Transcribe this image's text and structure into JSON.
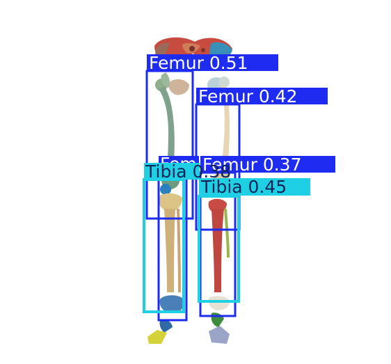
{
  "image": {
    "background": "#ffffff",
    "subject": "skeleton-legs-render"
  },
  "palette": {
    "femur_box": "#1e2bf0",
    "femur_label_bg": "#1e2bf0",
    "femur_label_text": "#ffffff",
    "tibia_box": "#1fd0e4",
    "tibia_label_bg": "#1fd0e4",
    "tibia_label_text": "#10245a"
  },
  "detections": [
    {
      "id": "femur-1",
      "label": "Femur 0.51",
      "class": "femur"
    },
    {
      "id": "femur-2",
      "label": "Femur 0.42",
      "class": "femur"
    },
    {
      "id": "femur-3",
      "label": "Femur 0.37",
      "class": "femur"
    },
    {
      "id": "femur-4",
      "label": "Fem",
      "class": "femur"
    },
    {
      "id": "tibia-1",
      "label": "Tibia 0.38",
      "class": "tibia"
    },
    {
      "id": "tibia-2",
      "label": "Tibia 0.45",
      "class": "tibia"
    }
  ]
}
